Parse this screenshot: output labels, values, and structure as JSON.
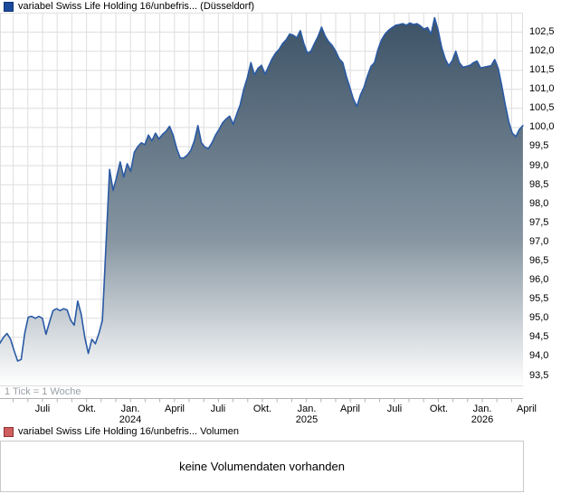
{
  "price_chart": {
    "legend": {
      "swatch_color": "#1b4a9c",
      "swatch_border": "#0d3473",
      "label": "variabel Swiss Life Holding 16/unbefris... (Düsseldorf)"
    },
    "tick_note": "1 Tick = 1 Woche",
    "line_color": "#2a5aa4",
    "fill_top": "#3c5266",
    "fill_mid": "#8695a1",
    "fill_bottom": "#ffffff",
    "grid_color": "#dedede",
    "axis_line_color": "#b3b3b3",
    "axis_text_color": "#000000"
  },
  "volume_chart": {
    "legend": {
      "swatch_color": "#cf5f5f",
      "swatch_border": "#972f2f",
      "label": "variabel Swiss Life Holding 16/unbefris... Volumen"
    },
    "message": "keine Volumendaten vorhanden"
  },
  "chart_data": {
    "type": "area",
    "title": "variabel Swiss Life Holding 16/unbefris... (Düsseldorf)",
    "exchange": "Düsseldorf",
    "x_unit": "weeks (1 Tick = 1 Woche), Jun 2023 - Apr 2026",
    "xlabel": "",
    "ylabel": "",
    "ylim": [
      93.24,
      103.0
    ],
    "y_tick_step": 0.5,
    "grid": "on",
    "legend_position": "top-left",
    "y_ticks": [
      {
        "v": 102.5,
        "label": "102,5"
      },
      {
        "v": 102.0,
        "label": "102,0"
      },
      {
        "v": 101.5,
        "label": "101,5"
      },
      {
        "v": 101.0,
        "label": "101,0"
      },
      {
        "v": 100.5,
        "label": "100,5"
      },
      {
        "v": 100.0,
        "label": "100,0"
      },
      {
        "v": 99.5,
        "label": "99,5"
      },
      {
        "v": 99.0,
        "label": "99,0"
      },
      {
        "v": 98.5,
        "label": "98,5"
      },
      {
        "v": 98.0,
        "label": "98,0"
      },
      {
        "v": 97.5,
        "label": "97,5"
      },
      {
        "v": 97.0,
        "label": "97,0"
      },
      {
        "v": 96.5,
        "label": "96,5"
      },
      {
        "v": 96.0,
        "label": "96,0"
      },
      {
        "v": 95.5,
        "label": "95,5"
      },
      {
        "v": 95.0,
        "label": "95,0"
      },
      {
        "v": 94.5,
        "label": "94,5"
      },
      {
        "v": 94.0,
        "label": "94,0"
      },
      {
        "v": 93.5,
        "label": "93,5"
      }
    ],
    "x_ticks": [
      {
        "label": "Juli",
        "week": 12.0
      },
      {
        "label": "Okt.",
        "week": 24.5
      },
      {
        "label": "Jan.",
        "year": "2024",
        "week": 36.9
      },
      {
        "label": "April",
        "week": 49.4
      },
      {
        "label": "Juli",
        "week": 61.8
      },
      {
        "label": "Okt.",
        "week": 74.3
      },
      {
        "label": "Jan.",
        "year": "2025",
        "week": 86.8
      },
      {
        "label": "April",
        "week": 99.2
      },
      {
        "label": "Juli",
        "week": 111.7
      },
      {
        "label": "Okt.",
        "week": 124.1
      },
      {
        "label": "Jan.",
        "year": "2026",
        "week": 136.6
      },
      {
        "label": "April",
        "week": 149.0
      }
    ],
    "points": [
      [
        0,
        94.35
      ],
      [
        1,
        94.5
      ],
      [
        2,
        94.6
      ],
      [
        3,
        94.45
      ],
      [
        4,
        94.15
      ],
      [
        5,
        93.88
      ],
      [
        6,
        93.92
      ],
      [
        7,
        94.6
      ],
      [
        8,
        95.03
      ],
      [
        9,
        95.05
      ],
      [
        10,
        95.0
      ],
      [
        11,
        95.05
      ],
      [
        12,
        95.0
      ],
      [
        13,
        94.58
      ],
      [
        14,
        94.9
      ],
      [
        15,
        95.2
      ],
      [
        16,
        95.25
      ],
      [
        17,
        95.2
      ],
      [
        18,
        95.25
      ],
      [
        19,
        95.22
      ],
      [
        20,
        94.95
      ],
      [
        21,
        94.82
      ],
      [
        22,
        95.45
      ],
      [
        23,
        95.1
      ],
      [
        24,
        94.5
      ],
      [
        25,
        94.08
      ],
      [
        26,
        94.45
      ],
      [
        27,
        94.33
      ],
      [
        28,
        94.6
      ],
      [
        29,
        94.95
      ],
      [
        30,
        96.9
      ],
      [
        31,
        98.9
      ],
      [
        32,
        98.35
      ],
      [
        33,
        98.7
      ],
      [
        34,
        99.1
      ],
      [
        35,
        98.7
      ],
      [
        36,
        99.05
      ],
      [
        37,
        98.85
      ],
      [
        38,
        99.35
      ],
      [
        39,
        99.5
      ],
      [
        40,
        99.6
      ],
      [
        41,
        99.55
      ],
      [
        42,
        99.8
      ],
      [
        43,
        99.65
      ],
      [
        44,
        99.85
      ],
      [
        45,
        99.7
      ],
      [
        46,
        99.82
      ],
      [
        47,
        99.9
      ],
      [
        48,
        100.03
      ],
      [
        49,
        99.8
      ],
      [
        50,
        99.45
      ],
      [
        51,
        99.2
      ],
      [
        52,
        99.2
      ],
      [
        53,
        99.28
      ],
      [
        54,
        99.4
      ],
      [
        55,
        99.65
      ],
      [
        56,
        100.05
      ],
      [
        57,
        99.6
      ],
      [
        58,
        99.48
      ],
      [
        59,
        99.45
      ],
      [
        60,
        99.6
      ],
      [
        61,
        99.8
      ],
      [
        62,
        99.95
      ],
      [
        63,
        100.12
      ],
      [
        64,
        100.22
      ],
      [
        65,
        100.3
      ],
      [
        66,
        100.08
      ],
      [
        67,
        100.35
      ],
      [
        68,
        100.6
      ],
      [
        69,
        101.0
      ],
      [
        70,
        101.3
      ],
      [
        71,
        101.7
      ],
      [
        72,
        101.38
      ],
      [
        73,
        101.55
      ],
      [
        74,
        101.63
      ],
      [
        75,
        101.4
      ],
      [
        76,
        101.6
      ],
      [
        77,
        101.8
      ],
      [
        78,
        101.95
      ],
      [
        79,
        102.05
      ],
      [
        80,
        102.2
      ],
      [
        81,
        102.3
      ],
      [
        82,
        102.45
      ],
      [
        83,
        102.42
      ],
      [
        84,
        102.35
      ],
      [
        85,
        102.54
      ],
      [
        86,
        102.2
      ],
      [
        87,
        101.95
      ],
      [
        88,
        102.0
      ],
      [
        89,
        102.2
      ],
      [
        90,
        102.38
      ],
      [
        91,
        102.63
      ],
      [
        92,
        102.4
      ],
      [
        93,
        102.25
      ],
      [
        94,
        102.15
      ],
      [
        95,
        102.0
      ],
      [
        96,
        101.8
      ],
      [
        97,
        101.7
      ],
      [
        98,
        101.35
      ],
      [
        99,
        101.05
      ],
      [
        100,
        100.75
      ],
      [
        101,
        100.55
      ],
      [
        102,
        100.85
      ],
      [
        103,
        101.05
      ],
      [
        104,
        101.35
      ],
      [
        105,
        101.6
      ],
      [
        106,
        101.7
      ],
      [
        107,
        102.05
      ],
      [
        108,
        102.3
      ],
      [
        109,
        102.45
      ],
      [
        110,
        102.55
      ],
      [
        111,
        102.62
      ],
      [
        112,
        102.68
      ],
      [
        113,
        102.7
      ],
      [
        114,
        102.72
      ],
      [
        115,
        102.68
      ],
      [
        116,
        102.74
      ],
      [
        117,
        102.7
      ],
      [
        118,
        102.72
      ],
      [
        119,
        102.66
      ],
      [
        120,
        102.58
      ],
      [
        121,
        102.62
      ],
      [
        122,
        102.45
      ],
      [
        123,
        102.88
      ],
      [
        124,
        102.55
      ],
      [
        125,
        102.1
      ],
      [
        126,
        101.8
      ],
      [
        127,
        101.62
      ],
      [
        128,
        101.75
      ],
      [
        129,
        102.0
      ],
      [
        130,
        101.7
      ],
      [
        131,
        101.58
      ],
      [
        132,
        101.6
      ],
      [
        133,
        101.63
      ],
      [
        134,
        101.7
      ],
      [
        135,
        101.74
      ],
      [
        136,
        101.56
      ],
      [
        137,
        101.58
      ],
      [
        138,
        101.6
      ],
      [
        139,
        101.62
      ],
      [
        140,
        101.78
      ],
      [
        141,
        101.55
      ],
      [
        142,
        101.1
      ],
      [
        143,
        100.6
      ],
      [
        144,
        100.15
      ],
      [
        145,
        99.85
      ],
      [
        146,
        99.76
      ],
      [
        147,
        99.95
      ],
      [
        148,
        100.05
      ]
    ]
  }
}
